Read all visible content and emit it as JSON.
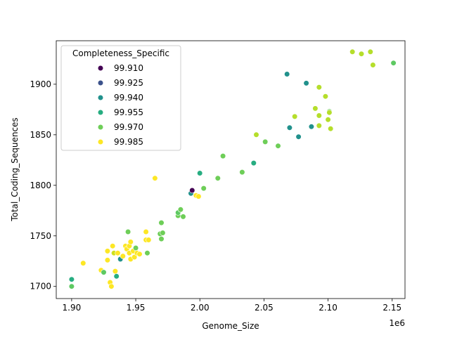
{
  "chart_data": {
    "type": "scatter",
    "title": "",
    "xlabel": "Genome_Size",
    "ylabel": "Total_Coding_Sequences",
    "x_offset_label": "1e6",
    "x_scale": 1000000,
    "xlim": [
      1.888,
      2.16
    ],
    "ylim": [
      1688,
      1943
    ],
    "xticks": [
      1.9,
      1.95,
      2.0,
      2.05,
      2.1,
      2.15
    ],
    "xtick_labels": [
      "1.90",
      "1.95",
      "2.00",
      "2.05",
      "2.10",
      "2.15"
    ],
    "yticks": [
      1700,
      1750,
      1800,
      1850,
      1900
    ],
    "ytick_labels": [
      "1700",
      "1750",
      "1800",
      "1850",
      "1900"
    ],
    "grid": false,
    "legend": {
      "title": "Completeness_Specific",
      "placement": "upper-left",
      "entries": [
        {
          "label": "99.910",
          "color": "#440154"
        },
        {
          "label": "99.925",
          "color": "#3b528b"
        },
        {
          "label": "99.940",
          "color": "#21918c"
        },
        {
          "label": "99.955",
          "color": "#27ad81"
        },
        {
          "label": "99.970",
          "color": "#6ece58"
        },
        {
          "label": "99.985",
          "color": "#fde725"
        }
      ]
    },
    "points": [
      {
        "x": 1.9,
        "y": 1707,
        "c": "#27ad81"
      },
      {
        "x": 1.9,
        "y": 1700,
        "c": "#5ec962"
      },
      {
        "x": 1.909,
        "y": 1723,
        "c": "#fde725"
      },
      {
        "x": 1.923,
        "y": 1716,
        "c": "#fde725"
      },
      {
        "x": 1.925,
        "y": 1714,
        "c": "#5ec962"
      },
      {
        "x": 1.928,
        "y": 1726,
        "c": "#fde725"
      },
      {
        "x": 1.928,
        "y": 1735,
        "c": "#fde725"
      },
      {
        "x": 1.93,
        "y": 1704,
        "c": "#fde725"
      },
      {
        "x": 1.931,
        "y": 1700,
        "c": "#fde725"
      },
      {
        "x": 1.932,
        "y": 1740,
        "c": "#fde725"
      },
      {
        "x": 1.933,
        "y": 1733,
        "c": "#d0e11c"
      },
      {
        "x": 1.934,
        "y": 1715,
        "c": "#fde725"
      },
      {
        "x": 1.935,
        "y": 1710,
        "c": "#27ad81"
      },
      {
        "x": 1.936,
        "y": 1733,
        "c": "#fde725"
      },
      {
        "x": 1.938,
        "y": 1727,
        "c": "#21918c"
      },
      {
        "x": 1.94,
        "y": 1730,
        "c": "#fde725"
      },
      {
        "x": 1.942,
        "y": 1740,
        "c": "#fde725"
      },
      {
        "x": 1.943,
        "y": 1737,
        "c": "#fde725"
      },
      {
        "x": 1.944,
        "y": 1754,
        "c": "#6ece58"
      },
      {
        "x": 1.945,
        "y": 1740,
        "c": "#fde725"
      },
      {
        "x": 1.945,
        "y": 1733,
        "c": "#fde725"
      },
      {
        "x": 1.946,
        "y": 1727,
        "c": "#fde725"
      },
      {
        "x": 1.946,
        "y": 1744,
        "c": "#fde725"
      },
      {
        "x": 1.948,
        "y": 1735,
        "c": "#fde725"
      },
      {
        "x": 1.949,
        "y": 1729,
        "c": "#fde725"
      },
      {
        "x": 1.95,
        "y": 1738,
        "c": "#6ece58"
      },
      {
        "x": 1.951,
        "y": 1733,
        "c": "#fde725"
      },
      {
        "x": 1.953,
        "y": 1732,
        "c": "#fde725"
      },
      {
        "x": 1.958,
        "y": 1754,
        "c": "#fde725"
      },
      {
        "x": 1.958,
        "y": 1746,
        "c": "#fde725"
      },
      {
        "x": 1.959,
        "y": 1733,
        "c": "#6ece58"
      },
      {
        "x": 1.96,
        "y": 1746,
        "c": "#fde725"
      },
      {
        "x": 1.965,
        "y": 1807,
        "c": "#fde725"
      },
      {
        "x": 1.969,
        "y": 1752,
        "c": "#6ece58"
      },
      {
        "x": 1.97,
        "y": 1763,
        "c": "#6ece58"
      },
      {
        "x": 1.97,
        "y": 1747,
        "c": "#6ece58"
      },
      {
        "x": 1.971,
        "y": 1753,
        "c": "#6ece58"
      },
      {
        "x": 1.983,
        "y": 1770,
        "c": "#6ece58"
      },
      {
        "x": 1.983,
        "y": 1773,
        "c": "#5ec962"
      },
      {
        "x": 1.985,
        "y": 1776,
        "c": "#6ece58"
      },
      {
        "x": 1.987,
        "y": 1769,
        "c": "#6ece58"
      },
      {
        "x": 1.993,
        "y": 1792,
        "c": "#21918c"
      },
      {
        "x": 1.994,
        "y": 1795,
        "c": "#440154"
      },
      {
        "x": 1.997,
        "y": 1790,
        "c": "#fde725"
      },
      {
        "x": 1.999,
        "y": 1789,
        "c": "#fde725"
      },
      {
        "x": 2.0,
        "y": 1812,
        "c": "#27ad81"
      },
      {
        "x": 2.003,
        "y": 1797,
        "c": "#6ece58"
      },
      {
        "x": 2.014,
        "y": 1807,
        "c": "#6ece58"
      },
      {
        "x": 2.018,
        "y": 1829,
        "c": "#6ece58"
      },
      {
        "x": 2.033,
        "y": 1813,
        "c": "#6ece58"
      },
      {
        "x": 2.042,
        "y": 1822,
        "c": "#27ad81"
      },
      {
        "x": 2.044,
        "y": 1850,
        "c": "#b5de2b"
      },
      {
        "x": 2.051,
        "y": 1843,
        "c": "#6ece58"
      },
      {
        "x": 2.061,
        "y": 1839,
        "c": "#6ece58"
      },
      {
        "x": 2.068,
        "y": 1910,
        "c": "#21918c"
      },
      {
        "x": 2.07,
        "y": 1857,
        "c": "#21918c"
      },
      {
        "x": 2.074,
        "y": 1868,
        "c": "#b5de2b"
      },
      {
        "x": 2.077,
        "y": 1848,
        "c": "#21918c"
      },
      {
        "x": 2.083,
        "y": 1901,
        "c": "#21918c"
      },
      {
        "x": 2.087,
        "y": 1858,
        "c": "#21918c"
      },
      {
        "x": 2.09,
        "y": 1876,
        "c": "#b5de2b"
      },
      {
        "x": 2.093,
        "y": 1897,
        "c": "#b5de2b"
      },
      {
        "x": 2.093,
        "y": 1869,
        "c": "#b5de2b"
      },
      {
        "x": 2.093,
        "y": 1859,
        "c": "#b5de2b"
      },
      {
        "x": 2.098,
        "y": 1888,
        "c": "#b5de2b"
      },
      {
        "x": 2.1,
        "y": 1865,
        "c": "#b5de2b"
      },
      {
        "x": 2.101,
        "y": 1873,
        "c": "#6ece58"
      },
      {
        "x": 2.101,
        "y": 1872,
        "c": "#b5de2b"
      },
      {
        "x": 2.102,
        "y": 1856,
        "c": "#b5de2b"
      },
      {
        "x": 2.119,
        "y": 1932,
        "c": "#b5de2b"
      },
      {
        "x": 2.126,
        "y": 1930,
        "c": "#b5de2b"
      },
      {
        "x": 2.133,
        "y": 1932,
        "c": "#b5de2b"
      },
      {
        "x": 2.135,
        "y": 1919,
        "c": "#b5de2b"
      },
      {
        "x": 2.151,
        "y": 1921,
        "c": "#5ec962"
      }
    ]
  }
}
